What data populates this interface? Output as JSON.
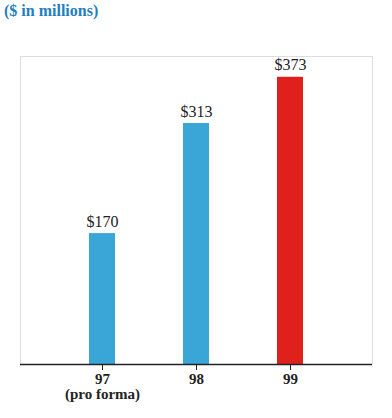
{
  "chart_data": {
    "type": "bar",
    "title": "($ in millions)",
    "categories": [
      "97\n(pro forma)",
      "98",
      "99"
    ],
    "values": [
      170,
      313,
      373
    ],
    "value_labels": [
      "$170",
      "$313",
      "$373"
    ],
    "colors": [
      "#3aa6d8",
      "#3aa6d8",
      "#e0201b"
    ],
    "ylim": [
      0,
      400
    ],
    "yticks": [],
    "data_labels": true,
    "tick_labels": "x",
    "grid": false
  }
}
